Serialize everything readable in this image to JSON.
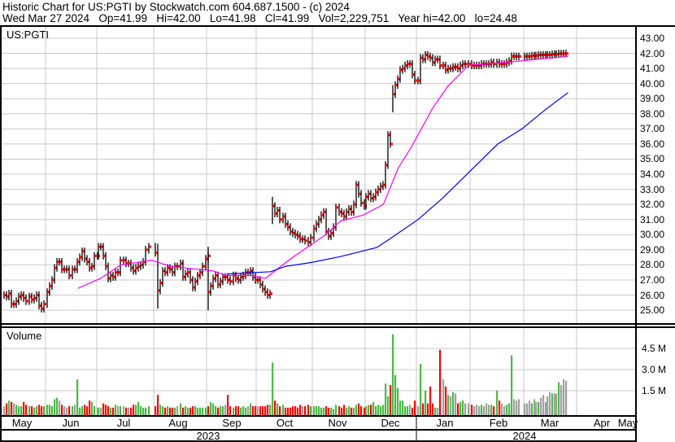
{
  "header": {
    "line1": "Historic Chart for US:PGTI by Stockwatch.com 604.687.1500 - (c) 2024",
    "line2": "Wed Mar 27 2024   Op=41.99   Hi=42.00   Lo=41.98   Cl=41.99   Vol=2,229,751   Year hi=42.00   lo=24.48"
  },
  "chart_data": [
    {
      "type": "ohlc",
      "title": "US:PGTI",
      "y_ticks": [
        "43.00",
        "42.00",
        "41.00",
        "40.00",
        "39.00",
        "38.00",
        "37.00",
        "36.00",
        "35.00",
        "34.00",
        "33.00",
        "32.00",
        "31.00",
        "30.00",
        "29.00",
        "28.00",
        "27.00",
        "26.00",
        "25.00"
      ],
      "ylim": [
        24.2,
        43.5
      ],
      "grid": true,
      "closes_by_month": {
        "2023-05": [
          26.0,
          25.9,
          26.1,
          25.4,
          25.4,
          25.6,
          25.9,
          26.0,
          25.8,
          25.6,
          25.9,
          25.7,
          25.8,
          26.0,
          25.3,
          25.1,
          25.4
        ],
        "2023-06": [
          26.2,
          26.6,
          27.0,
          27.8,
          28.2,
          28.2,
          27.7,
          27.7,
          27.7,
          27.3,
          27.7,
          27.7,
          28.2,
          28.5,
          28.9,
          28.4,
          28.2,
          27.8,
          27.9,
          28.6,
          28.6
        ],
        "2023-07": [
          29.2,
          29.2,
          28.6,
          27.9,
          27.1,
          27.3,
          27.2,
          27.5,
          27.5,
          28.3,
          28.3,
          28.1,
          28.1,
          27.8,
          27.6,
          27.8,
          27.9,
          28.0,
          28.2,
          29.0,
          29.2
        ],
        "2023-08": [
          28.8,
          26.3,
          26.8,
          27.6,
          27.5,
          27.8,
          27.7,
          27.5,
          27.9,
          27.9,
          28.1,
          27.2,
          27.4,
          27.5,
          27.0,
          26.5,
          26.9,
          27.3,
          27.5,
          27.9,
          28.4,
          28.6
        ],
        "2023-09": [
          26.2,
          26.6,
          27.1,
          27.3,
          26.7,
          26.9,
          27.2,
          27.2,
          27.0,
          26.9,
          27.3,
          27.1,
          27.0,
          27.2,
          27.3,
          27.5,
          27.5,
          27.6,
          27.2,
          27.0
        ],
        "2023-10": [
          27.0,
          26.7,
          26.4,
          26.2,
          26.0,
          26.1,
          31.9,
          31.4,
          31.6,
          31.0,
          31.2,
          30.7,
          30.5,
          30.2,
          30.1,
          30.0,
          29.9,
          29.7,
          29.7,
          29.6,
          29.5,
          29.8
        ],
        "2023-11": [
          30.4,
          30.7,
          31.0,
          31.3,
          31.5,
          30.2,
          29.9,
          30.1,
          30.5,
          31.8,
          31.5,
          31.4,
          31.2,
          31.5,
          31.7,
          31.5,
          32.0,
          33.3,
          32.7,
          32.1,
          31.9
        ],
        "2023-12": [
          32.5,
          32.7,
          32.4,
          32.5,
          32.8,
          33.0,
          33.2,
          33.3,
          34.6,
          36.6,
          36.0,
          39.3,
          39.9,
          40.3,
          40.9,
          41.0,
          41.2,
          41.3,
          41.3,
          40.6,
          40.2
        ],
        "2024-01": [
          40.2,
          41.7,
          41.6,
          41.9,
          41.8,
          41.7,
          41.4,
          41.6,
          41.6,
          41.2,
          41.2,
          40.9,
          41.0,
          41.0,
          41.1,
          41.1,
          41.0,
          41.2,
          41.3,
          41.3,
          41.3
        ],
        "2024-02": [
          41.2,
          41.2,
          41.2,
          41.2,
          41.3,
          41.3,
          41.3,
          41.3,
          41.4,
          41.3,
          41.4,
          41.3,
          41.3,
          41.3,
          41.4,
          41.5,
          41.8,
          41.8,
          41.8,
          41.8
        ],
        "2024-03": [
          41.8,
          41.8,
          41.8,
          41.85,
          41.85,
          41.85,
          41.9,
          41.9,
          41.9,
          41.9,
          41.9,
          41.9,
          41.95,
          41.95,
          41.95,
          41.99,
          41.99,
          41.99,
          41.99
        ]
      },
      "moving_averages": [
        {
          "color": "#ff00ff",
          "points": [
            [
              "2023-06-20",
              26.45
            ],
            [
              "2023-07-03",
              27.1
            ],
            [
              "2023-07-14",
              28.0
            ],
            [
              "2023-07-31",
              28.3
            ],
            [
              "2023-08-11",
              27.9
            ],
            [
              "2023-09-05",
              27.6
            ],
            [
              "2023-09-13",
              27.3
            ],
            [
              "2023-09-28",
              27.3
            ],
            [
              "2023-10-06",
              27.1
            ],
            [
              "2023-10-20",
              28.4
            ],
            [
              "2023-11-08",
              29.95
            ],
            [
              "2023-11-17",
              30.9
            ],
            [
              "2023-11-30",
              31.3
            ],
            [
              "2023-12-12",
              32.0
            ],
            [
              "2023-12-21",
              34.4
            ],
            [
              "2023-12-29",
              35.8
            ],
            [
              "2024-01-10",
              38.3
            ],
            [
              "2024-01-19",
              39.8
            ],
            [
              "2024-01-31",
              41.2
            ],
            [
              "2024-02-20",
              41.4
            ],
            [
              "2024-03-27",
              41.8
            ]
          ]
        },
        {
          "color": "#0000ff",
          "points": [
            [
              "2023-09-14",
              27.4
            ],
            [
              "2023-10-09",
              27.55
            ],
            [
              "2023-10-17",
              27.9
            ],
            [
              "2023-10-31",
              28.15
            ],
            [
              "2023-11-17",
              28.55
            ],
            [
              "2023-12-08",
              29.15
            ],
            [
              "2023-12-15",
              29.65
            ],
            [
              "2024-01-02",
              31.0
            ],
            [
              "2024-01-16",
              32.4
            ],
            [
              "2024-02-01",
              34.2
            ],
            [
              "2024-02-16",
              36.0
            ],
            [
              "2024-02-29",
              37.0
            ],
            [
              "2024-03-14",
              38.3
            ],
            [
              "2024-03-27",
              39.4
            ]
          ]
        }
      ],
      "bar_color": "#000000",
      "close_tick_color": "#ff0000"
    },
    {
      "type": "bar",
      "title": "Volume",
      "y_ticks": [
        "4.5 M",
        "3.0 M",
        "1.5 M"
      ],
      "unit": "M",
      "colors": {
        "up": "#4cb848",
        "down": "#ff0000",
        "unchanged": "#a0a0a0"
      },
      "volume_by_month": {
        "2023-05": [
          0.4,
          0.6,
          0.8,
          0.7,
          0.6,
          0.5,
          0.4,
          0.4,
          0.7,
          0.5,
          0.4,
          0.4,
          0.3,
          0.4,
          0.5,
          0.4,
          0.4
        ],
        "2023-06": [
          0.5,
          0.5,
          0.4,
          0.9,
          1.0,
          0.8,
          0.5,
          0.4,
          0.3,
          0.4,
          0.4,
          0.5,
          2.3,
          0.3,
          0.4,
          0.5,
          0.4,
          0.8,
          0.7,
          0.4,
          0.3
        ],
        "2023-07": [
          0.3,
          0.3,
          0.6,
          0.5,
          0.4,
          0.3,
          0.3,
          0.5,
          0.4,
          0.4,
          0.4,
          0.3,
          0.3,
          0.3,
          0.5,
          0.5,
          0.7,
          0.4,
          0.3,
          0.3,
          0.4
        ],
        "2023-08": [
          0.4,
          1.2,
          0.5,
          0.4,
          0.3,
          0.4,
          0.3,
          0.3,
          0.3,
          0.4,
          0.6,
          0.3,
          0.4,
          0.3,
          0.3,
          0.4,
          0.4,
          0.3,
          0.3,
          0.3,
          0.3,
          0.3
        ],
        "2023-09": [
          0.4,
          0.7,
          0.6,
          0.4,
          0.3,
          0.4,
          0.4,
          0.5,
          1.2,
          0.4,
          0.3,
          0.4,
          0.4,
          0.3,
          0.4,
          0.3,
          0.4,
          0.6,
          0.4,
          0.4
        ],
        "2023-10": [
          0.4,
          0.4,
          0.4,
          0.4,
          0.5,
          0.5,
          3.5,
          0.8,
          0.6,
          0.4,
          0.5,
          0.3,
          0.3,
          0.3,
          0.4,
          0.4,
          0.3,
          0.5,
          0.4,
          0.4,
          0.5,
          0.4
        ],
        "2023-11": [
          0.4,
          0.4,
          0.4,
          0.3,
          0.3,
          0.4,
          0.3,
          0.3,
          0.2,
          0.5,
          0.4,
          0.3,
          0.5,
          0.3,
          0.4,
          0.3,
          0.3,
          0.5,
          0.6,
          0.4,
          0.3
        ],
        "2023-12": [
          0.4,
          0.5,
          0.5,
          0.7,
          0.4,
          0.5,
          0.4,
          0.5,
          2.0,
          1.1,
          1.9,
          5.5,
          2.6,
          1.7,
          0.8,
          0.8,
          0.4,
          0.4,
          0.5,
          0.3,
          0.8
        ],
        "2024-01": [
          0.4,
          3.4,
          0.6,
          1.5,
          0.6,
          1.8,
          0.6,
          0.3,
          0.3,
          4.4,
          2.3,
          1.8,
          1.2,
          1.1,
          1.4,
          1.3,
          0.6,
          0.7,
          0.8,
          0.6,
          0.6
        ],
        "2024-02": [
          0.5,
          0.4,
          0.5,
          0.4,
          0.5,
          0.4,
          0.6,
          0.5,
          0.5,
          0.4,
          1.5,
          0.8,
          0.6,
          0.4,
          0.5,
          0.6,
          4.0,
          0.9,
          0.8,
          0.9
        ],
        "2024-03": [
          0.6,
          0.6,
          0.8,
          0.6,
          0.9,
          0.7,
          0.7,
          1.0,
          1.2,
          0.7,
          1.1,
          1.4,
          1.3,
          1.3,
          1.3,
          2.1,
          1.9,
          2.3,
          2.2
        ]
      }
    }
  ],
  "x_axis": {
    "months": [
      "May",
      "Jun",
      "Jul",
      "Aug",
      "Sep",
      "Oct",
      "Nov",
      "Dec",
      "Jan",
      "Feb",
      "Mar",
      "Apr",
      "May"
    ],
    "years": [
      "2023",
      "2024"
    ]
  }
}
